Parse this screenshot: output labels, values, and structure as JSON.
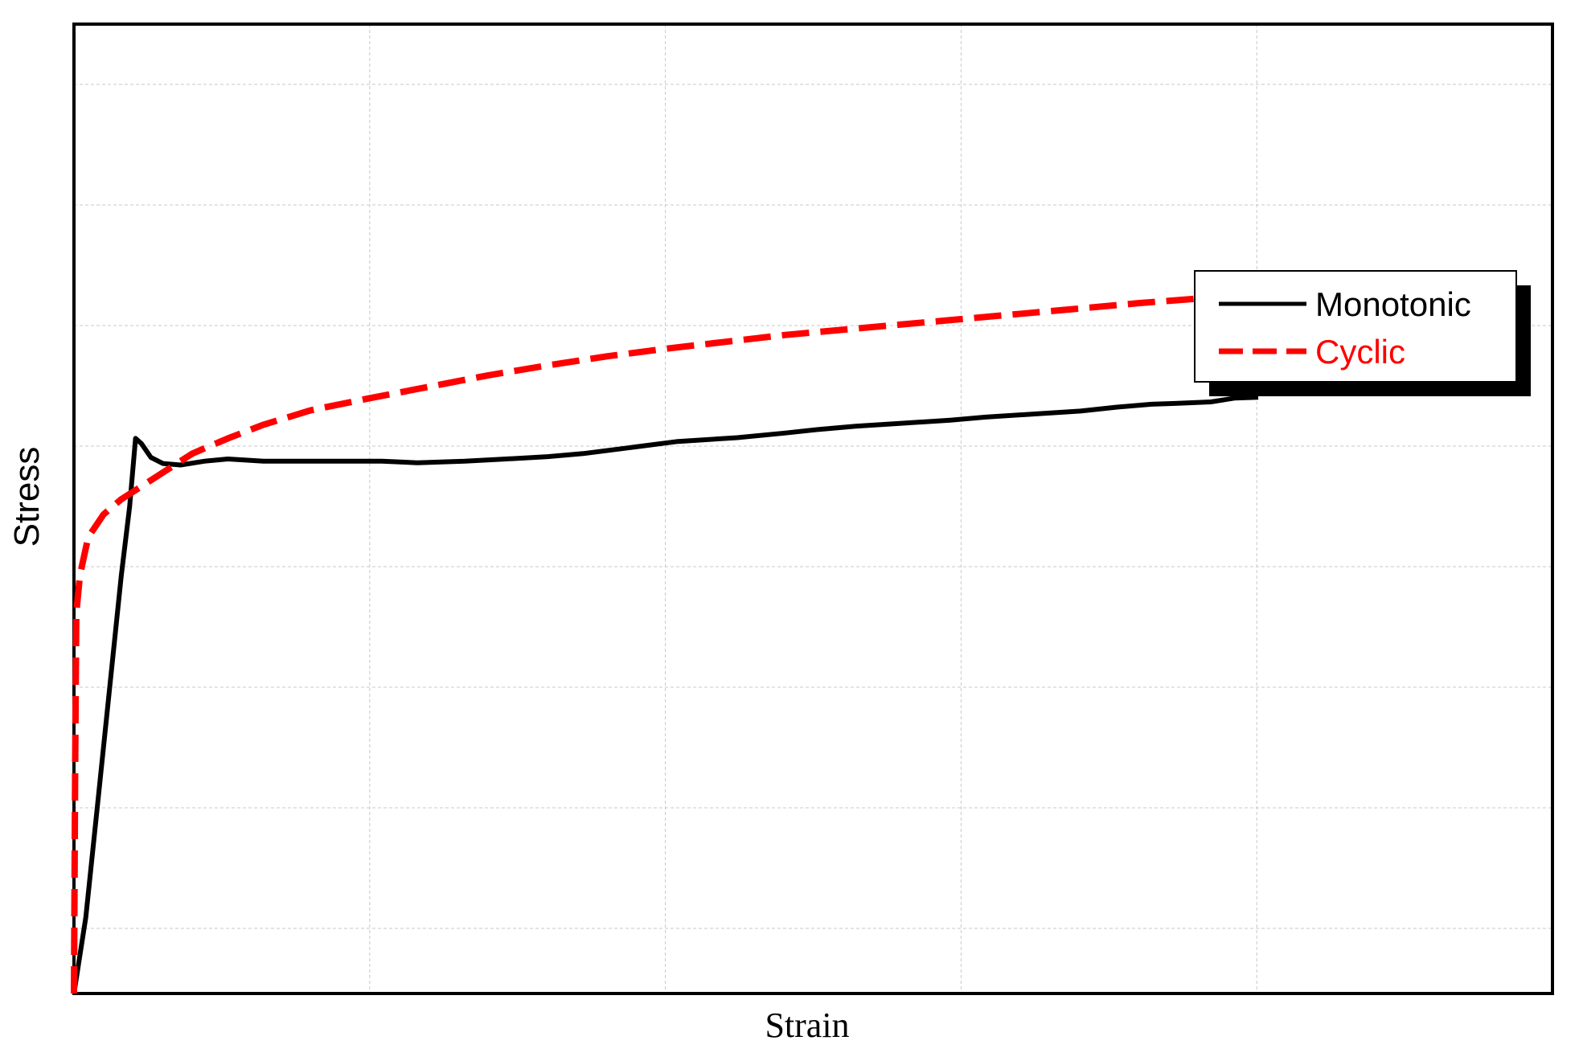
{
  "chart_data": {
    "type": "line",
    "xlabel": "Strain",
    "ylabel": "Stress",
    "xlim": [
      0,
      1
    ],
    "ylim": [
      0,
      1
    ],
    "grid": true,
    "tick_labels": false,
    "legend_position": "top-right",
    "series": [
      {
        "name": "Monotonic",
        "color": "#000000",
        "style": "solid",
        "points": [
          [
            0.0,
            0.0
          ],
          [
            0.01,
            0.1
          ],
          [
            0.02,
            0.25
          ],
          [
            0.03,
            0.4
          ],
          [
            0.04,
            0.55
          ],
          [
            0.047,
            0.64
          ],
          [
            0.052,
            0.73
          ],
          [
            0.057,
            0.723
          ],
          [
            0.065,
            0.705
          ],
          [
            0.075,
            0.697
          ],
          [
            0.09,
            0.695
          ],
          [
            0.11,
            0.7
          ],
          [
            0.13,
            0.703
          ],
          [
            0.16,
            0.7
          ],
          [
            0.2,
            0.7
          ],
          [
            0.23,
            0.7
          ],
          [
            0.26,
            0.7
          ],
          [
            0.29,
            0.698
          ],
          [
            0.31,
            0.699
          ],
          [
            0.33,
            0.7
          ],
          [
            0.365,
            0.703
          ],
          [
            0.4,
            0.706
          ],
          [
            0.43,
            0.71
          ],
          [
            0.46,
            0.716
          ],
          [
            0.48,
            0.72
          ],
          [
            0.51,
            0.726
          ],
          [
            0.56,
            0.731
          ],
          [
            0.6,
            0.737
          ],
          [
            0.63,
            0.742
          ],
          [
            0.66,
            0.746
          ],
          [
            0.7,
            0.75
          ],
          [
            0.74,
            0.754
          ],
          [
            0.77,
            0.758
          ],
          [
            0.81,
            0.762
          ],
          [
            0.85,
            0.766
          ],
          [
            0.88,
            0.771
          ],
          [
            0.91,
            0.775
          ],
          [
            0.93,
            0.776
          ],
          [
            0.96,
            0.778
          ],
          [
            0.98,
            0.783
          ],
          [
            1.0,
            0.784
          ]
        ]
      },
      {
        "name": "Cyclic",
        "color": "#ff0000",
        "style": "dashed",
        "points": [
          [
            0.0,
            0.0
          ],
          [
            0.001,
            0.3
          ],
          [
            0.002,
            0.5
          ],
          [
            0.005,
            0.55
          ],
          [
            0.012,
            0.6
          ],
          [
            0.025,
            0.63
          ],
          [
            0.04,
            0.65
          ],
          [
            0.06,
            0.67
          ],
          [
            0.08,
            0.69
          ],
          [
            0.1,
            0.71
          ],
          [
            0.13,
            0.73
          ],
          [
            0.16,
            0.748
          ],
          [
            0.2,
            0.767
          ],
          [
            0.25,
            0.783
          ],
          [
            0.3,
            0.798
          ],
          [
            0.35,
            0.813
          ],
          [
            0.4,
            0.826
          ],
          [
            0.45,
            0.838
          ],
          [
            0.5,
            0.848
          ],
          [
            0.55,
            0.857
          ],
          [
            0.6,
            0.866
          ],
          [
            0.65,
            0.873
          ],
          [
            0.7,
            0.88
          ],
          [
            0.75,
            0.887
          ],
          [
            0.8,
            0.894
          ],
          [
            0.85,
            0.901
          ],
          [
            0.9,
            0.908
          ],
          [
            0.95,
            0.914
          ],
          [
            1.0,
            0.92
          ]
        ]
      }
    ]
  }
}
